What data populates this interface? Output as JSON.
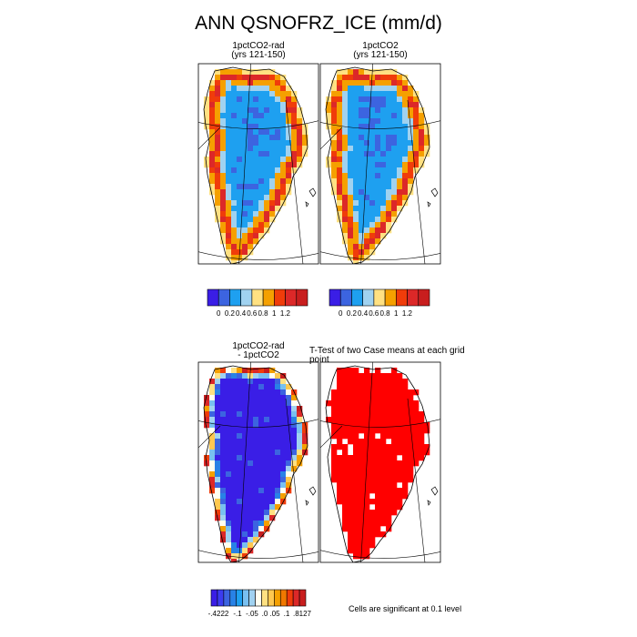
{
  "title": "ANN QSNOFRZ_ICE (mm/d)",
  "panels": [
    {
      "title": "1pctCO2-rad",
      "subtitle": "(yrs 121-150)"
    },
    {
      "title": "1pctCO2",
      "subtitle": "(yrs 121-150)"
    },
    {
      "title": "1pctCO2-rad",
      "subtitle": "- 1pctCO2"
    },
    {
      "title": "T-Test of two Case means at each grid point",
      "subtitle": ""
    }
  ],
  "significance_note": "Cells are significant at 0.1 level",
  "colors": {
    "abs_scale": [
      "#3a1ee6",
      "#3c64e0",
      "#1ea0f0",
      "#a0d2f0",
      "#ffe182",
      "#f5a000",
      "#f03c0a",
      "#dc2828",
      "#c81e1e"
    ],
    "diff_scale": [
      "#3a1ee6",
      "#3c3cf0",
      "#3c64e0",
      "#2882e6",
      "#1ea0f0",
      "#78c0f0",
      "#a0d2f0",
      "#fffff0",
      "#ffe182",
      "#ffc850",
      "#f5a000",
      "#f07800",
      "#f03c0a",
      "#dc2828",
      "#c81e1e"
    ],
    "significant": "#ff0000"
  },
  "chart_data": [
    {
      "type": "heatmap",
      "title": "1pctCO2-rad (yrs 121-150)",
      "colorbar": {
        "labels": [
          "0",
          "0.2",
          "0.4",
          "0.6",
          "0.8",
          "1",
          "1.2"
        ]
      }
    },
    {
      "type": "heatmap",
      "title": "1pctCO2 (yrs 121-150)",
      "colorbar": {
        "labels": [
          "0",
          "0.2",
          "0.4",
          "0.6",
          "0.8",
          "1",
          "1.2"
        ]
      }
    },
    {
      "type": "heatmap",
      "title": "1pctCO2-rad - 1pctCO2",
      "colorbar": {
        "labels": [
          "-.4222",
          "-.1",
          "-.05",
          ".0",
          ".05",
          ".1",
          ".8127"
        ]
      }
    },
    {
      "type": "heatmap",
      "title": "T-Test of two Case means at each grid point",
      "legend": "Cells are significant at 0.1 level"
    }
  ]
}
